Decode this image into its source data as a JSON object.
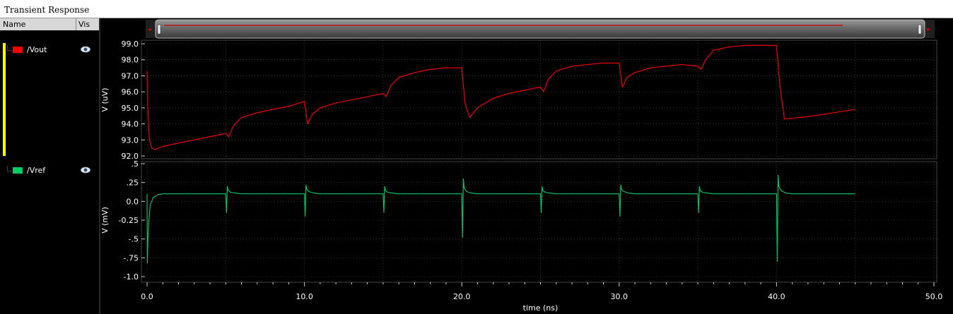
{
  "window": {
    "title": "Transient Response"
  },
  "signal_list": {
    "headers": {
      "name": "Name",
      "vis": "Vis"
    },
    "signals": [
      {
        "name": "/Vout",
        "color": "#ff0000",
        "visible_icon": "eye-icon"
      },
      {
        "name": "/Vref",
        "color": "#00cc66",
        "visible_icon": "eye-icon"
      }
    ]
  },
  "scrollbar": {
    "left_arrow": "◄",
    "right_arrow": "►",
    "track_color": "#cc0000"
  },
  "chart_data": [
    {
      "type": "line",
      "title": "",
      "xlabel": "time (ns)",
      "ylabel": "V (uV)",
      "xlim": [
        0,
        50
      ],
      "ylim": [
        92.0,
        99.0
      ],
      "y_ticks": [
        "92.0",
        "93.0",
        "94.0",
        "95.0",
        "96.0",
        "97.0",
        "98.0",
        "99.0"
      ],
      "grid": true,
      "series": [
        {
          "name": "/Vout",
          "color": "#ff0000",
          "x": [
            0.0,
            0.05,
            0.15,
            0.3,
            0.5,
            1.0,
            2.0,
            3.0,
            4.0,
            5.0,
            5.2,
            5.5,
            6.0,
            7.0,
            8.0,
            9.0,
            10.0,
            10.2,
            10.5,
            11.0,
            12.0,
            13.0,
            14.0,
            15.0,
            15.2,
            15.5,
            16.0,
            17.0,
            18.0,
            19.0,
            20.0,
            20.2,
            20.5,
            21.0,
            22.0,
            23.0,
            24.0,
            25.0,
            25.2,
            25.5,
            26.0,
            27.0,
            28.0,
            29.0,
            30.0,
            30.2,
            30.5,
            31.0,
            32.0,
            33.0,
            34.0,
            35.0,
            35.2,
            35.5,
            36.0,
            37.0,
            38.0,
            39.0,
            40.0,
            40.2,
            40.5,
            41.0,
            42.0,
            43.0,
            44.0,
            45.0
          ],
          "y": [
            97.3,
            95.0,
            93.0,
            92.5,
            92.4,
            92.6,
            92.8,
            93.0,
            93.2,
            93.4,
            93.2,
            93.9,
            94.4,
            94.7,
            94.9,
            95.1,
            95.4,
            94.0,
            94.6,
            95.0,
            95.3,
            95.5,
            95.7,
            95.9,
            95.7,
            96.4,
            96.9,
            97.2,
            97.4,
            97.5,
            97.5,
            95.3,
            94.4,
            95.0,
            95.6,
            95.9,
            96.1,
            96.3,
            96.0,
            96.8,
            97.3,
            97.6,
            97.7,
            97.8,
            97.8,
            96.3,
            96.9,
            97.2,
            97.5,
            97.6,
            97.7,
            97.6,
            97.4,
            98.0,
            98.6,
            98.8,
            98.9,
            98.9,
            98.9,
            96.5,
            94.3,
            94.35,
            94.45,
            94.6,
            94.75,
            94.9
          ]
        }
      ]
    },
    {
      "type": "line",
      "title": "",
      "xlabel": "time (ns)",
      "ylabel": "V (mV)",
      "xlim": [
        0,
        50
      ],
      "ylim": [
        -1.0,
        0.5
      ],
      "y_ticks": [
        "-1.0",
        "-.75",
        "-.5",
        "-0.25",
        "0.0",
        ".25",
        ".5"
      ],
      "x_ticks": [
        "0.0",
        "10.0",
        "20.0",
        "30.0",
        "40.0",
        "50.0"
      ],
      "grid": true,
      "series": [
        {
          "name": "/Vref",
          "color": "#00cc66",
          "x": [
            0.0,
            0.02,
            0.05,
            0.1,
            0.2,
            0.4,
            0.7,
            1.0,
            5.0,
            5.05,
            5.1,
            5.15,
            5.3,
            5.6,
            6.0,
            10.0,
            10.05,
            10.1,
            10.15,
            10.3,
            10.6,
            11.0,
            15.0,
            15.05,
            15.1,
            15.15,
            15.3,
            15.6,
            16.0,
            20.0,
            20.05,
            20.1,
            20.15,
            20.3,
            20.6,
            21.0,
            25.0,
            25.05,
            25.1,
            25.15,
            25.3,
            25.6,
            26.0,
            30.0,
            30.05,
            30.1,
            30.15,
            30.3,
            30.6,
            31.0,
            35.0,
            35.05,
            35.1,
            35.15,
            35.3,
            35.6,
            36.0,
            40.0,
            40.05,
            40.1,
            40.15,
            40.3,
            40.6,
            41.0,
            45.0
          ],
          "y": [
            0.1,
            -0.82,
            -0.55,
            -0.3,
            -0.05,
            0.05,
            0.09,
            0.1,
            0.1,
            -0.15,
            0.2,
            0.15,
            0.12,
            0.11,
            0.1,
            0.1,
            -0.2,
            0.22,
            0.16,
            0.13,
            0.11,
            0.1,
            0.1,
            -0.15,
            0.2,
            0.14,
            0.12,
            0.11,
            0.1,
            0.1,
            -0.48,
            0.3,
            0.18,
            0.13,
            0.11,
            0.1,
            0.1,
            -0.15,
            0.2,
            0.14,
            0.12,
            0.11,
            0.1,
            0.1,
            -0.2,
            0.22,
            0.16,
            0.13,
            0.11,
            0.1,
            0.1,
            -0.15,
            0.2,
            0.14,
            0.12,
            0.11,
            0.1,
            0.1,
            -0.8,
            0.35,
            0.2,
            0.14,
            0.11,
            0.1,
            0.1
          ]
        }
      ]
    }
  ]
}
